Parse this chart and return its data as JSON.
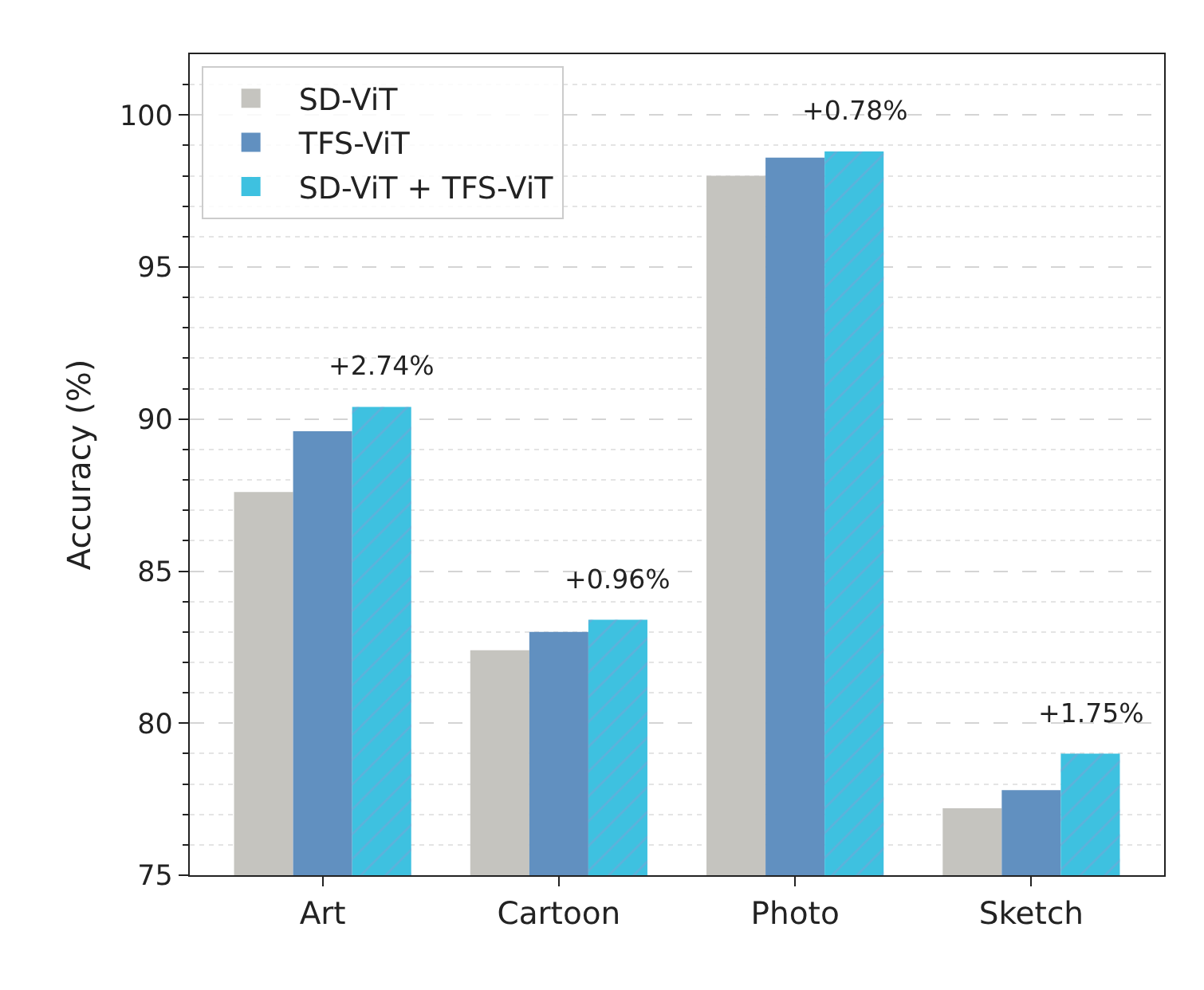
{
  "chart_data": {
    "type": "bar",
    "ylabel": "Accuracy (%)",
    "categories": [
      "Art",
      "Cartoon",
      "Photo",
      "Sketch"
    ],
    "series": [
      {
        "name": "SD-ViT",
        "color": "#c5c4bf",
        "values": [
          87.6,
          82.4,
          98.0,
          77.2
        ]
      },
      {
        "name": "TFS-ViT",
        "color": "#6190c0",
        "values": [
          89.6,
          83.0,
          98.6,
          77.8
        ]
      },
      {
        "name": "SD-ViT + TFS-ViT",
        "color": "#3ec1e0",
        "values": [
          90.4,
          83.4,
          98.8,
          79.0
        ]
      }
    ],
    "annotations": [
      "+2.74%",
      "+0.96%",
      "+0.78%",
      "+1.75%"
    ],
    "ylim": [
      75,
      102
    ],
    "yticks": [
      75,
      {
        "value": 76,
        "label": null
      },
      {
        "value": 77,
        "label": null
      },
      {
        "value": 78,
        "label": null
      },
      {
        "value": 79,
        "label": null
      },
      80,
      {
        "value": 81,
        "label": null
      },
      {
        "value": 82,
        "label": null
      },
      {
        "value": 83,
        "label": null
      },
      {
        "value": 84,
        "label": null
      },
      85,
      {
        "value": 86,
        "label": null
      },
      {
        "value": 87,
        "label": null
      },
      {
        "value": 88,
        "label": null
      },
      {
        "value": 89,
        "label": null
      },
      90,
      {
        "value": 91,
        "label": null
      },
      {
        "value": 92,
        "label": null
      },
      {
        "value": 93,
        "label": null
      },
      {
        "value": 94,
        "label": null
      },
      95,
      {
        "value": 96,
        "label": null
      },
      {
        "value": 97,
        "label": null
      },
      {
        "value": 98,
        "label": null
      },
      {
        "value": 99,
        "label": null
      },
      100,
      {
        "value": 101,
        "label": null
      }
    ],
    "grid": "y",
    "legend": "top left"
  }
}
